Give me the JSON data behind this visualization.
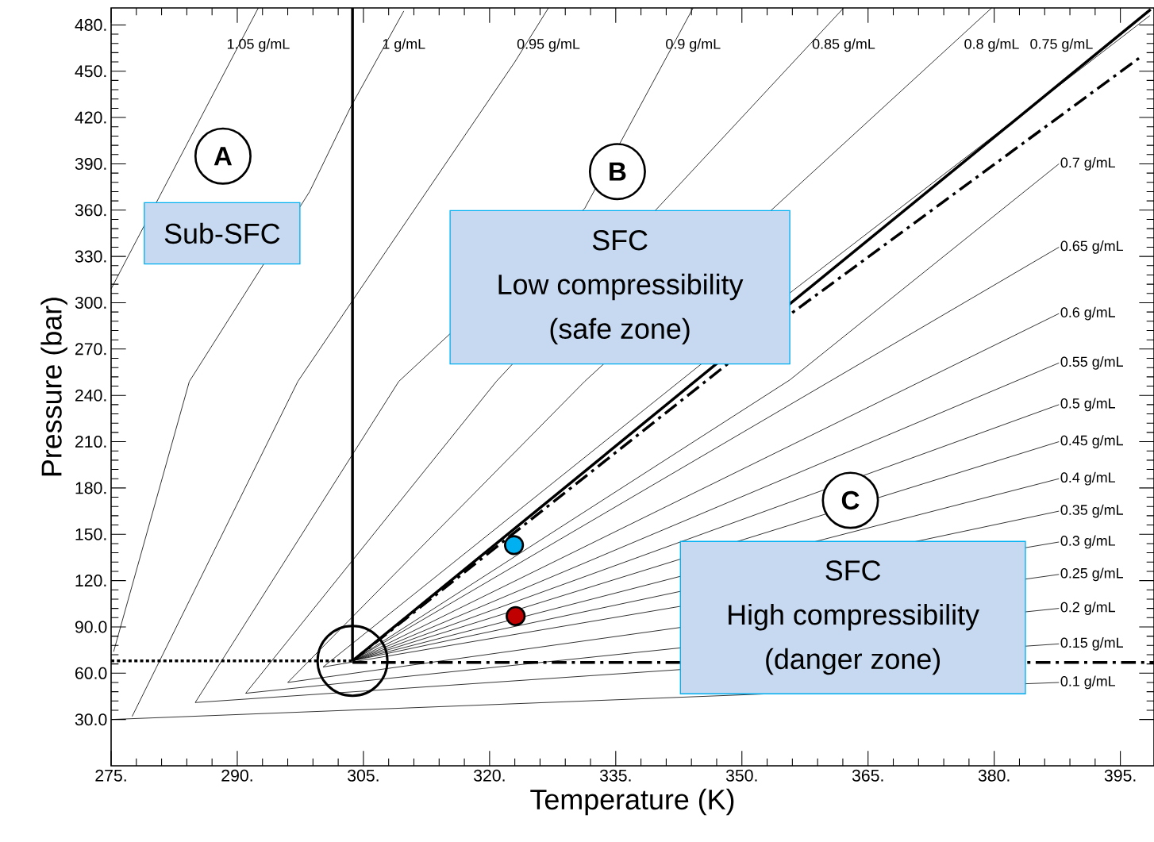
{
  "chart_data": {
    "type": "line",
    "legend": "right",
    "xlabel": "Temperature (K)",
    "ylabel": "Pressure (bar)",
    "xlim": [
      275,
      399
    ],
    "ylim": [
      0,
      491
    ],
    "xticks": [
      {
        "value": 275,
        "label": "275."
      },
      {
        "value": 290,
        "label": "290."
      },
      {
        "value": 305,
        "label": "305."
      },
      {
        "value": 320,
        "label": "320."
      },
      {
        "value": 335,
        "label": "335."
      },
      {
        "value": 350,
        "label": "350."
      },
      {
        "value": 365,
        "label": "365."
      },
      {
        "value": 380,
        "label": "380."
      },
      {
        "value": 395,
        "label": "395."
      }
    ],
    "yticks": [
      {
        "value": 30,
        "label": "30.0"
      },
      {
        "value": 60,
        "label": "60.0"
      },
      {
        "value": 90,
        "label": "90.0"
      },
      {
        "value": 120,
        "label": "120."
      },
      {
        "value": 150,
        "label": "150."
      },
      {
        "value": 180,
        "label": "180."
      },
      {
        "value": 210,
        "label": "210."
      },
      {
        "value": 240,
        "label": "240."
      },
      {
        "value": 270,
        "label": "270."
      },
      {
        "value": 300,
        "label": "300."
      },
      {
        "value": 330,
        "label": "330."
      },
      {
        "value": 360,
        "label": "360."
      },
      {
        "value": 390,
        "label": "390."
      },
      {
        "value": 420,
        "label": "420."
      },
      {
        "value": 450,
        "label": "450."
      },
      {
        "value": 480,
        "label": "480."
      }
    ],
    "series": [
      {
        "name": "1.05 g/mL",
        "color": "#000000",
        "x": [
          275,
          292.5
        ],
        "values": [
          309,
          491
        ]
      },
      {
        "name": "1 g/mL",
        "color": "#000000",
        "x": [
          275.3,
          284.3,
          298.6,
          303.5,
          309.8
        ],
        "values": [
          74,
          249,
          372,
          427,
          489
        ]
      },
      {
        "name": "0.95 g/mL",
        "color": "#000000",
        "x": [
          277.5,
          297.2,
          304.4,
          323,
          327
        ],
        "values": [
          32,
          249,
          307,
          456,
          491
        ]
      },
      {
        "name": "0.9 g/mL",
        "color": "#000000",
        "x": [
          285,
          309.2,
          331.3,
          344.2
        ],
        "values": [
          41,
          249,
          361,
          491
        ]
      },
      {
        "name": "0.85 g/mL",
        "color": "#000000",
        "x": [
          291,
          320.8,
          362.1
        ],
        "values": [
          47,
          249,
          491
        ]
      },
      {
        "name": "0.8 g/mL",
        "color": "#000000",
        "x": [
          296,
          331.3,
          379.7
        ],
        "values": [
          54,
          249,
          491
        ]
      },
      {
        "name": "0.75 g/mL",
        "color": "#000000",
        "x": [
          300.2,
          356.1,
          398.5
        ],
        "values": [
          64,
          308,
          486
        ]
      },
      {
        "name": "0.7 g/mL",
        "color": "#000000",
        "x": [
          303.7,
          355.7,
          387.7
        ],
        "values": [
          68,
          250,
          390
        ]
      },
      {
        "name": "0.65 g/mL",
        "color": "#000000",
        "x": [
          303.7,
          387.7
        ],
        "values": [
          68,
          336
        ]
      },
      {
        "name": "0.6 g/mL",
        "color": "#000000",
        "x": [
          303.7,
          387.7
        ],
        "values": [
          68,
          293
        ]
      },
      {
        "name": "0.55 g/mL",
        "color": "#000000",
        "x": [
          303.7,
          387.7
        ],
        "values": [
          68,
          261
        ]
      },
      {
        "name": "0.5 g/mL",
        "color": "#000000",
        "x": [
          303.7,
          387.7
        ],
        "values": [
          68,
          234
        ]
      },
      {
        "name": "0.45 g/mL",
        "color": "#000000",
        "x": [
          303.7,
          387.7
        ],
        "values": [
          68,
          210
        ]
      },
      {
        "name": "0.4 g/mL",
        "color": "#000000",
        "x": [
          303.7,
          387.7
        ],
        "values": [
          68,
          186
        ]
      },
      {
        "name": "0.35 g/mL",
        "color": "#000000",
        "x": [
          303.7,
          387.7
        ],
        "values": [
          68,
          165
        ]
      },
      {
        "name": "0.3 g/mL",
        "color": "#000000",
        "x": [
          300.2,
          387.7
        ],
        "values": [
          64,
          145
        ]
      },
      {
        "name": "0.25 g/mL",
        "color": "#000000",
        "x": [
          296,
          387.7
        ],
        "values": [
          54,
          124
        ]
      },
      {
        "name": "0.2 g/mL",
        "color": "#000000",
        "x": [
          291,
          387.7
        ],
        "values": [
          47,
          102
        ]
      },
      {
        "name": "0.15 g/mL",
        "color": "#000000",
        "x": [
          285,
          387.7
        ],
        "values": [
          41,
          79
        ]
      },
      {
        "name": "0.1 g/mL",
        "color": "#000000",
        "x": [
          275,
          387.7
        ],
        "values": [
          30,
          54
        ]
      },
      {
        "color": "#000000",
        "line_style": "solid",
        "x": [
          303.7,
          398.6
        ],
        "values": [
          68,
          490
        ]
      },
      {
        "color": "#000000",
        "line_style": "dashed",
        "x": [
          303.7,
          356.1,
          397.6
        ],
        "values": [
          68,
          294,
          460
        ]
      },
      {
        "color": "#000000",
        "line_style": "dashed",
        "x": [
          303.7,
          399
        ],
        "values": [
          67,
          67
        ]
      },
      {
        "color": "#000000",
        "line_style": "solid",
        "x": [
          303.7,
          303.7
        ],
        "values": [
          68,
          491
        ]
      },
      {
        "color": "#000000",
        "line_style": "dotted",
        "x": [
          275,
          303.7
        ],
        "values": [
          68,
          68
        ]
      },
      {
        "type": "scatter",
        "marker": "circle",
        "color": "#00b0f0",
        "x": [
          322.9
        ],
        "values": [
          143
        ]
      },
      {
        "type": "scatter",
        "marker": "circle",
        "color": "#c00000",
        "x": [
          323.1
        ],
        "values": [
          97
        ]
      }
    ],
    "annotations": [
      "A",
      "Sub-SFC",
      "B",
      "SFC",
      "Low compressibility",
      "(safe zone)",
      "C",
      "SFC",
      "High compressibility",
      "(danger zone)"
    ]
  }
}
